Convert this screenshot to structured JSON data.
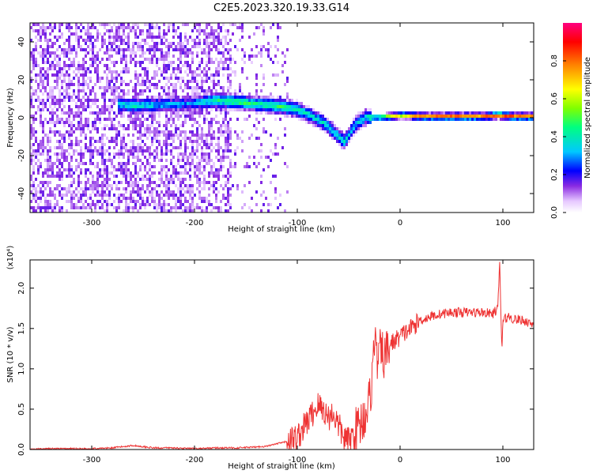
{
  "title": "C2E5.2023.320.19.33.G14",
  "chart_data": [
    {
      "type": "heatmap",
      "xlabel": "Height of straight line (km)",
      "ylabel": "Frequency (Hz)",
      "xlim": [
        -360,
        130
      ],
      "ylim": [
        -50,
        50
      ],
      "xticks": [
        -300,
        -200,
        -100,
        0,
        100
      ],
      "yticks": [
        -40,
        -20,
        0,
        20,
        40
      ],
      "colorbar": {
        "label": "Normalized spectral amplitude",
        "range": [
          0,
          1
        ],
        "ticks": [
          0.0,
          0.2,
          0.4,
          0.6,
          0.8
        ],
        "colors": [
          "#ffffff",
          "#e6c8ff",
          "#8a2be2",
          "#0000ff",
          "#00c8ff",
          "#00ff80",
          "#80ff00",
          "#ffff00",
          "#ff8000",
          "#ff0000",
          "#ff0080"
        ]
      },
      "ridge": [
        {
          "x": -275,
          "y": 8,
          "a": 0.4
        },
        {
          "x": -260,
          "y": 7,
          "a": 0.4
        },
        {
          "x": -210,
          "y": 8,
          "a": 0.3
        },
        {
          "x": -180,
          "y": 10,
          "a": 0.45
        },
        {
          "x": -160,
          "y": 9,
          "a": 0.5
        },
        {
          "x": -140,
          "y": 8,
          "a": 0.45
        },
        {
          "x": -120,
          "y": 7,
          "a": 0.5
        },
        {
          "x": -100,
          "y": 5,
          "a": 0.45
        },
        {
          "x": -85,
          "y": 1,
          "a": 0.4
        },
        {
          "x": -75,
          "y": -2,
          "a": 0.4
        },
        {
          "x": -65,
          "y": -7,
          "a": 0.4
        },
        {
          "x": -55,
          "y": -12,
          "a": 0.4
        },
        {
          "x": -45,
          "y": -3,
          "a": 0.35
        },
        {
          "x": -35,
          "y": 1,
          "a": 0.4
        },
        {
          "x": -20,
          "y": 1,
          "a": 0.6
        },
        {
          "x": 0,
          "y": 2,
          "a": 0.7
        },
        {
          "x": 20,
          "y": 1.5,
          "a": 0.8
        },
        {
          "x": 40,
          "y": 1.5,
          "a": 0.85
        },
        {
          "x": 60,
          "y": 1.5,
          "a": 0.85
        },
        {
          "x": 80,
          "y": 1.5,
          "a": 0.8
        },
        {
          "x": 95,
          "y": 2,
          "a": 0.9
        },
        {
          "x": 110,
          "y": 1.5,
          "a": 0.85
        },
        {
          "x": 130,
          "y": 1.5,
          "a": 0.8
        }
      ]
    },
    {
      "type": "line",
      "xlabel": "Height of straight line (km)",
      "ylabel": "SNR (10 * v/v)",
      "multiplier": "(x10⁴)",
      "xlim": [
        -360,
        130
      ],
      "ylim": [
        0,
        2.35
      ],
      "xticks": [
        -300,
        -200,
        -100,
        0,
        100
      ],
      "yticks": [
        0.0,
        0.5,
        1.0,
        1.5,
        2.0
      ],
      "color": "#ee3333",
      "x": [
        -360,
        -340,
        -320,
        -300,
        -280,
        -260,
        -240,
        -220,
        -200,
        -180,
        -160,
        -140,
        -130,
        -120,
        -110,
        -100,
        -95,
        -90,
        -85,
        -80,
        -75,
        -70,
        -65,
        -60,
        -55,
        -50,
        -45,
        -40,
        -35,
        -30,
        -27,
        -25,
        -23,
        -20,
        -15,
        -10,
        -5,
        0,
        10,
        20,
        30,
        40,
        50,
        60,
        70,
        80,
        90,
        95,
        97,
        99,
        100,
        105,
        110,
        120,
        130
      ],
      "y": [
        0.0,
        0.01,
        0.01,
        0.01,
        0.02,
        0.05,
        0.02,
        0.02,
        0.01,
        0.02,
        0.02,
        0.03,
        0.04,
        0.07,
        0.1,
        0.15,
        0.25,
        0.35,
        0.45,
        0.55,
        0.5,
        0.4,
        0.45,
        0.3,
        0.15,
        0.1,
        0.2,
        0.3,
        0.4,
        0.6,
        0.9,
        1.45,
        1.1,
        1.2,
        1.15,
        1.3,
        1.35,
        1.4,
        1.5,
        1.6,
        1.65,
        1.68,
        1.7,
        1.7,
        1.7,
        1.7,
        1.68,
        1.75,
        2.3,
        1.2,
        1.6,
        1.65,
        1.62,
        1.6,
        1.55
      ]
    }
  ]
}
